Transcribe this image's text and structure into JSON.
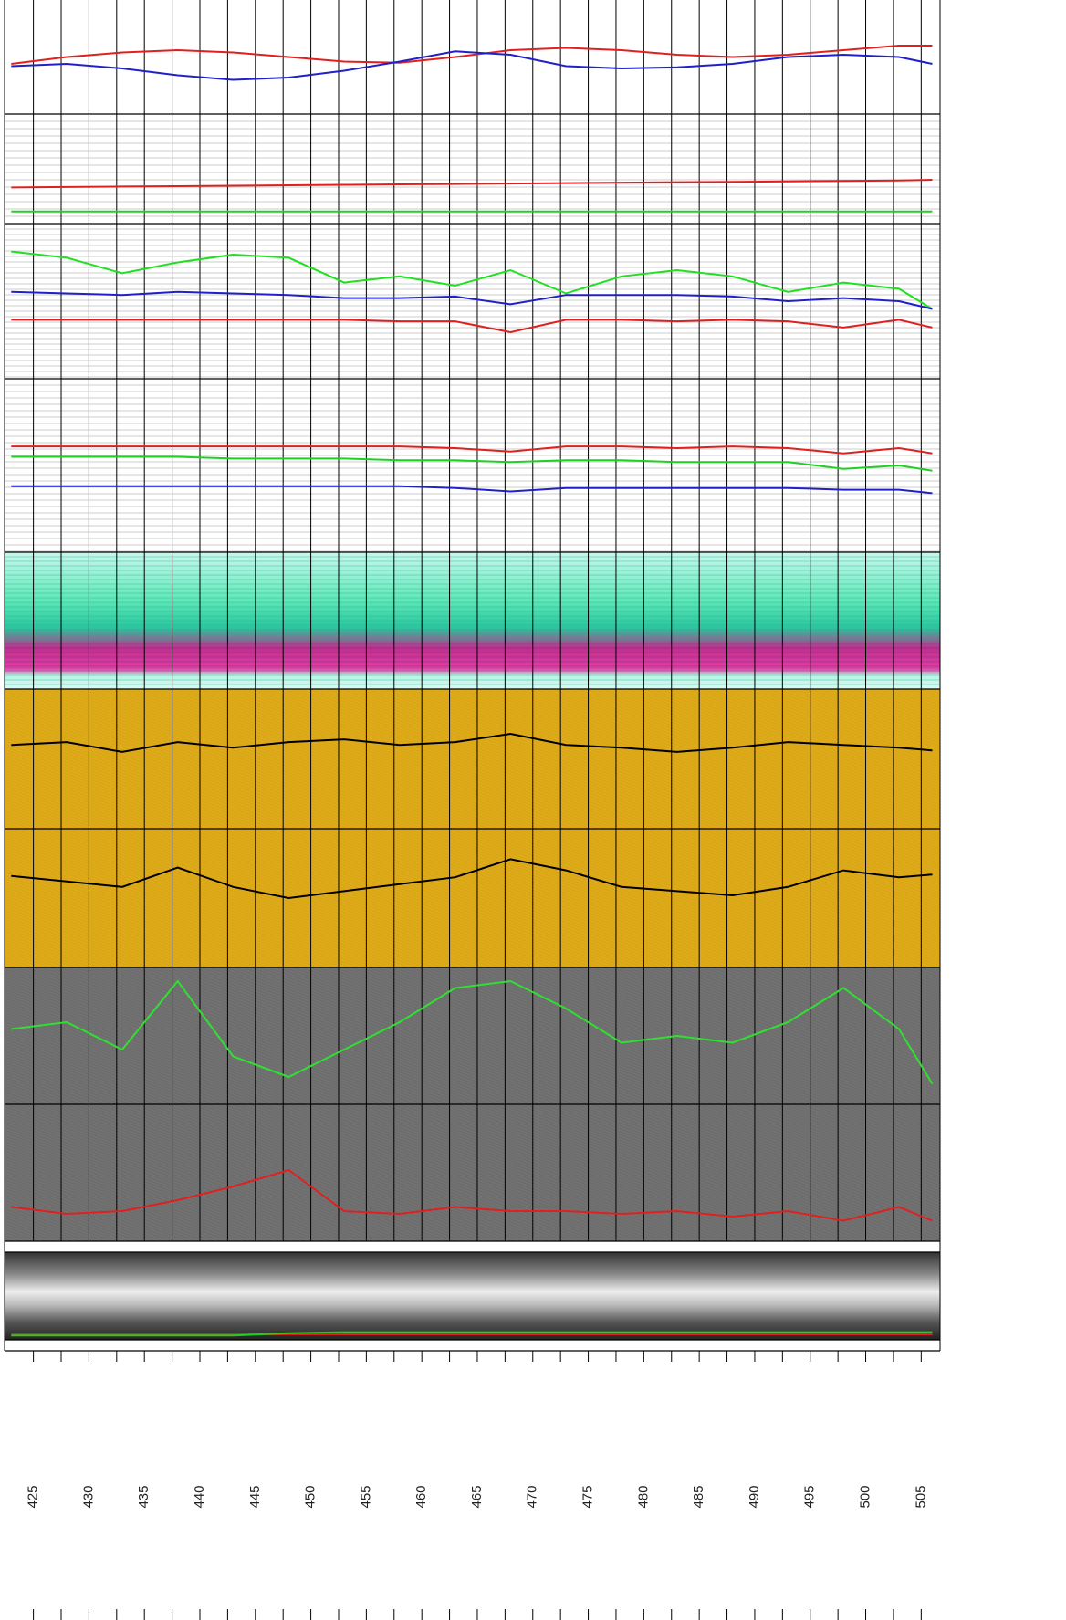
{
  "chart_data": {
    "type": "line",
    "xlim": [
      422.4,
      506.7
    ],
    "xticks": [
      425,
      430,
      435,
      440,
      445,
      450,
      455,
      460,
      465,
      470,
      475,
      480,
      485,
      490,
      495,
      500,
      505
    ],
    "x_gridlines": [
      425,
      427.5,
      430,
      432.5,
      435,
      437.5,
      440,
      442.5,
      445,
      447.5,
      450,
      452.5,
      455,
      457.5,
      460,
      462.5,
      465,
      467.5,
      470,
      472.5,
      475,
      477.5,
      480,
      482.5,
      485,
      487.5,
      490,
      492.5,
      495,
      497.5,
      500,
      502.5,
      505
    ],
    "x": [
      423,
      428,
      433,
      438,
      443,
      448,
      453,
      458,
      463,
      468,
      473,
      478,
      483,
      488,
      493,
      498,
      503,
      506
    ],
    "panels": [
      {
        "ylim": [
          0,
          100
        ],
        "series": [
          {
            "color": "#e02020",
            "values": [
              44,
              50,
              54,
              56,
              54,
              50,
              46,
              45,
              50,
              56,
              58,
              56,
              52,
              50,
              52,
              56,
              60,
              60
            ]
          },
          {
            "color": "#2020c8",
            "values": [
              42,
              44,
              40,
              34,
              30,
              32,
              38,
              46,
              55,
              52,
              42,
              40,
              41,
              44,
              50,
              52,
              50,
              44
            ]
          }
        ]
      },
      {
        "ylim": [
          0,
          100
        ],
        "series": [
          {
            "color": "#e02020",
            "values": [
              33,
              33.4,
              33.8,
              34.2,
              34.6,
              35,
              35.4,
              35.8,
              36.2,
              36.6,
              37,
              37.4,
              37.8,
              38.2,
              38.6,
              39,
              39.4,
              40
            ]
          },
          {
            "color": "#20d020",
            "values": [
              11,
              11,
              11,
              11,
              11,
              11,
              11,
              11,
              11,
              11,
              11,
              11,
              11,
              11,
              11,
              11,
              11,
              11
            ]
          }
        ]
      },
      {
        "ylim": [
          0,
          100
        ],
        "series": [
          {
            "color": "#20e020",
            "values": [
              82,
              78,
              68,
              75,
              80,
              78,
              62,
              66,
              60,
              70,
              55,
              66,
              70,
              66,
              56,
              62,
              58,
              45
            ]
          },
          {
            "color": "#2020c8",
            "values": [
              56,
              55,
              54,
              56,
              55,
              54,
              52,
              52,
              53,
              48,
              54,
              54,
              54,
              53,
              50,
              52,
              50,
              45
            ]
          },
          {
            "color": "#e02020",
            "values": [
              38,
              38,
              38,
              38,
              38,
              38,
              38,
              37,
              37,
              30,
              38,
              38,
              37,
              38,
              37,
              33,
              38,
              33
            ]
          }
        ]
      },
      {
        "ylim": [
          0,
          100
        ],
        "series": [
          {
            "color": "#e02020",
            "values": [
              61,
              61,
              61,
              61,
              61,
              61,
              61,
              61,
              60,
              58,
              61,
              61,
              60,
              61,
              60,
              57,
              60,
              57
            ]
          },
          {
            "color": "#20d020",
            "values": [
              55,
              55,
              55,
              55,
              54,
              54,
              54,
              53,
              53,
              52,
              53,
              53,
              52,
              52,
              52,
              48,
              50,
              47
            ]
          },
          {
            "color": "#2020c8",
            "values": [
              38,
              38,
              38,
              38,
              38,
              38,
              38,
              38,
              37,
              35,
              37,
              37,
              37,
              37,
              37,
              36,
              36,
              34
            ]
          }
        ]
      },
      {
        "ylim": [
          0,
          100
        ],
        "series": [
          {
            "color": "#000000",
            "values": [
              60,
              62,
              55,
              62,
              58,
              62,
              64,
              60,
              62,
              68,
              60,
              58,
              55,
              58,
              62,
              60,
              58,
              56
            ]
          }
        ]
      },
      {
        "ylim": [
          0,
          100
        ],
        "series": [
          {
            "color": "#000000",
            "values": [
              66,
              62,
              58,
              72,
              58,
              50,
              55,
              60,
              65,
              78,
              70,
              58,
              55,
              52,
              58,
              70,
              65,
              67
            ]
          }
        ]
      },
      {
        "ylim": [
          0,
          100
        ],
        "series": [
          {
            "color": "#30e030",
            "values": [
              55,
              60,
              40,
              90,
              35,
              20,
              40,
              60,
              85,
              90,
              70,
              45,
              50,
              45,
              60,
              85,
              55,
              15
            ]
          }
        ]
      },
      {
        "ylim": [
          0,
          100
        ],
        "series": [
          {
            "color": "#e02020",
            "values": [
              25,
              20,
              22,
              30,
              40,
              52,
              22,
              20,
              25,
              22,
              22,
              20,
              22,
              18,
              22,
              15,
              25,
              15
            ]
          }
        ]
      },
      {
        "ylim": [
          0,
          100
        ],
        "series": [
          {
            "color": "#e02020",
            "values": [
              15,
              15,
              15,
              15,
              15,
              15,
              15,
              15,
              15,
              15,
              15,
              15,
              15,
              15,
              15,
              15,
              15,
              15
            ]
          },
          {
            "color": "#20d020",
            "values": [
              14,
              14,
              14,
              14,
              14,
              16,
              17,
              17,
              17,
              17,
              17,
              17,
              17,
              17,
              17,
              17,
              17,
              17
            ]
          }
        ]
      }
    ]
  }
}
